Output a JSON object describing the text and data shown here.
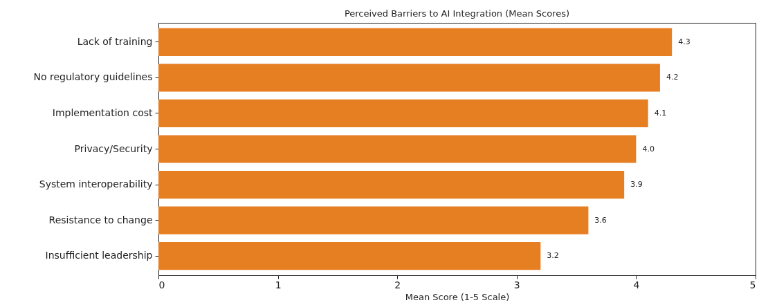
{
  "chart_data": {
    "type": "bar",
    "orientation": "horizontal",
    "title": "Perceived Barriers to AI Integration (Mean Scores)",
    "xlabel": "Mean Score (1-5 Scale)",
    "categories": [
      "Lack of training",
      "No regulatory guidelines",
      "Implementation cost",
      "Privacy/Security",
      "System interoperability",
      "Resistance to change",
      "Insufficient leadership"
    ],
    "values": [
      4.3,
      4.2,
      4.1,
      4.0,
      3.9,
      3.6,
      3.2
    ],
    "value_labels": [
      "4.3",
      "4.2",
      "4.1",
      "4.0",
      "3.9",
      "3.6",
      "3.2"
    ],
    "color": "#e67e22",
    "xlim": [
      0,
      5
    ],
    "xticks": [
      0,
      1,
      2,
      3,
      4,
      5
    ],
    "grid": false
  }
}
